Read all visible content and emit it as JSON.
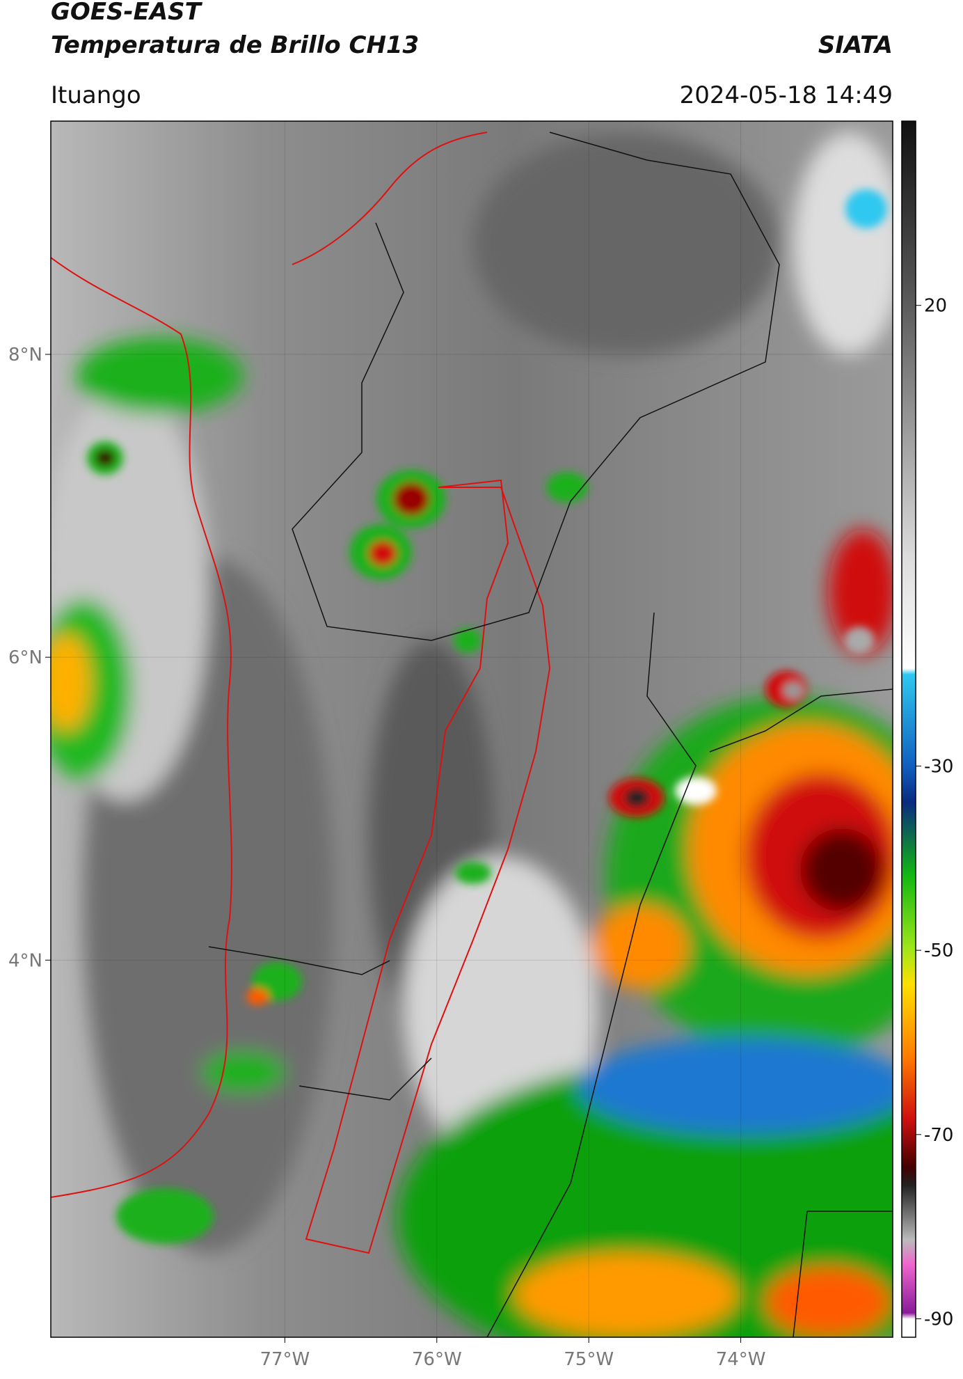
{
  "header": {
    "satellite": "GOES-EAST",
    "product": "Temperatura de Brillo CH13",
    "agency": "SIATA",
    "region": "Ituango",
    "datetime": "2024-05-18 14:49"
  },
  "map": {
    "lon_lim": [
      -78.54,
      -73.0
    ],
    "lat_lim": [
      1.51,
      9.54
    ],
    "lon_ticks": [
      {
        "value": -77,
        "label": "77°W"
      },
      {
        "value": -76,
        "label": "76°W"
      },
      {
        "value": -75,
        "label": "75°W"
      },
      {
        "value": -74,
        "label": "74°W"
      }
    ],
    "lat_ticks": [
      {
        "value": 8,
        "label": "8°N"
      },
      {
        "value": 6,
        "label": "6°N"
      },
      {
        "value": 4,
        "label": "4°N"
      }
    ]
  },
  "colorbar": {
    "lim": [
      -92,
      40
    ],
    "ticks": [
      20,
      -30,
      -50,
      -70,
      -90
    ]
  }
}
